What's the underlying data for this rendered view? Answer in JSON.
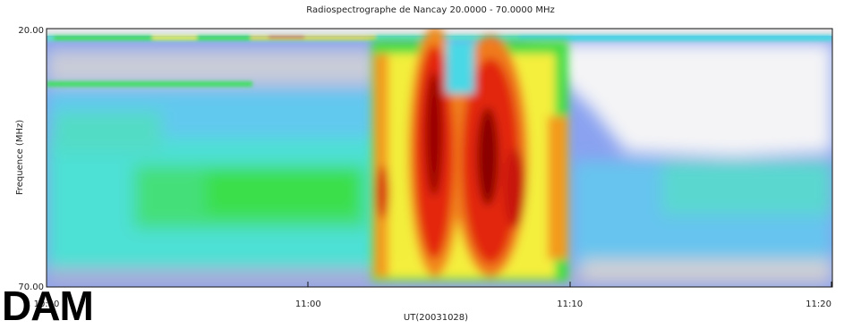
{
  "chart_data": {
    "type": "heatmap",
    "title": "Radiospectrographe de Nancay 20.0000 - 70.0000 MHz",
    "xlabel": "UT(20031028)",
    "ylabel": "Frequence (MHz)",
    "xlim": [
      "10:50",
      "11:20"
    ],
    "ylim": [
      70.0,
      20.0
    ],
    "xticks": [
      "10:50",
      "11:00",
      "11:10",
      "11:20"
    ],
    "yticks": [
      "20.00",
      "70.00"
    ],
    "colorscale": [
      "#d9d9d9",
      "#8a9cf5",
      "#49d8e6",
      "#33dd44",
      "#f7f240",
      "#f39b1c",
      "#e5230e",
      "#8a0303"
    ]
  },
  "instrument_label": "DAM"
}
